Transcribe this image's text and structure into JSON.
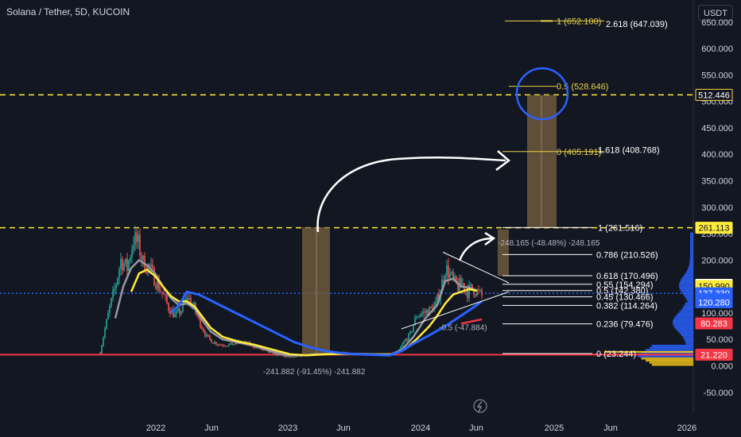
{
  "header": {
    "title": "Solana / Tether, 5D, KUCOIN",
    "currency": "USDT"
  },
  "chart_data": {
    "type": "candlestick",
    "ylim": [
      -60,
      690
    ],
    "y_ticks": [
      "650.000",
      "600.000",
      "550.000",
      "500.000",
      "450.000",
      "400.000",
      "350.000",
      "300.000",
      "250.000",
      "200.000",
      "150.000",
      "100.000",
      "50.000",
      "0.000",
      "-50.000"
    ],
    "y_tick_values": [
      650,
      600,
      550,
      500,
      450,
      400,
      350,
      300,
      250,
      200,
      150,
      100,
      50,
      0,
      -50
    ],
    "x_ticks": [
      "2022",
      "Jun",
      "2023",
      "Jun",
      "2024",
      "Jun",
      "2025",
      "Jun",
      "2026"
    ],
    "price_tags": [
      {
        "value": 512.446,
        "label": "512.446",
        "bg": "#131722",
        "fg": "#ffffff",
        "border": "#ffd740"
      },
      {
        "value": 261.113,
        "label": "261.113",
        "bg": "#ffeb3b",
        "fg": "#131722"
      },
      {
        "value": 153.244,
        "label": "153.244",
        "bg": "#ffffff",
        "fg": "#131722"
      },
      {
        "value": 150.99,
        "label": "150.990",
        "bg": "#ffeb3b",
        "fg": "#131722"
      },
      {
        "value": 137.33,
        "label": "137.330",
        "bg": "#2962ff",
        "fg": "#ffffff"
      },
      {
        "value": 126.0,
        "label": "56:59",
        "bg": "#2962ff",
        "fg": "#ffffff"
      },
      {
        "value": 120.28,
        "label": "120.280",
        "bg": "#2962ff",
        "fg": "#ffffff"
      },
      {
        "value": 80.283,
        "label": "80.283",
        "bg": "#f23645",
        "fg": "#ffffff"
      },
      {
        "value": 21.22,
        "label": "21.220",
        "bg": "#f23645",
        "fg": "#ffffff"
      }
    ],
    "fib_right": [
      {
        "level": "0.786 (210.526)",
        "value": 210.526
      },
      {
        "level": "0.618 (170.496)",
        "value": 170.496
      },
      {
        "level": "0.55 (154.294)",
        "value": 154.294
      },
      {
        "level": "0.5 (142.380)",
        "value": 142.38
      },
      {
        "level": "0.45 (130.466)",
        "value": 130.466
      },
      {
        "level": "0.382 (114.264)",
        "value": 114.264
      },
      {
        "level": "0.236 (79.476)",
        "value": 79.476
      },
      {
        "level": "0 (23.244)",
        "value": 23.244
      }
    ],
    "fib_ext": [
      {
        "level": "1 (652.100)",
        "value": 652.1,
        "yellow": true
      },
      {
        "level": "2.618 (647.039)",
        "value": 647.039,
        "yellow": false
      },
      {
        "level": "0.5 (528.646)",
        "value": 528.646,
        "yellow": true
      },
      {
        "level": "0 (405.191)",
        "value": 405.191,
        "yellow": true
      },
      {
        "level": "1.618 (408.768)",
        "value": 408.768,
        "yellow": false
      },
      {
        "level": "1 (261.516)",
        "value": 261.516,
        "yellow": false
      }
    ],
    "measure_labels": {
      "bottom": "-241.882 (-91.45%) -241.882",
      "upper": "-248.165 (-48.48%) -248.165",
      "mid": "-0.5 (-47.884)"
    },
    "dashed_levels": [
      512.446,
      261.113
    ],
    "support_level": 21.22,
    "dotted_level": 137.33,
    "colors": {
      "up": "#26a69a",
      "down": "#ef5350",
      "ma_fast": "#9598a1",
      "ma_yellow": "#ffeb3b",
      "ma_blue": "#2962ff",
      "box": "#7a6240",
      "dash": "#ffeb3b",
      "support": "#f23645"
    }
  }
}
